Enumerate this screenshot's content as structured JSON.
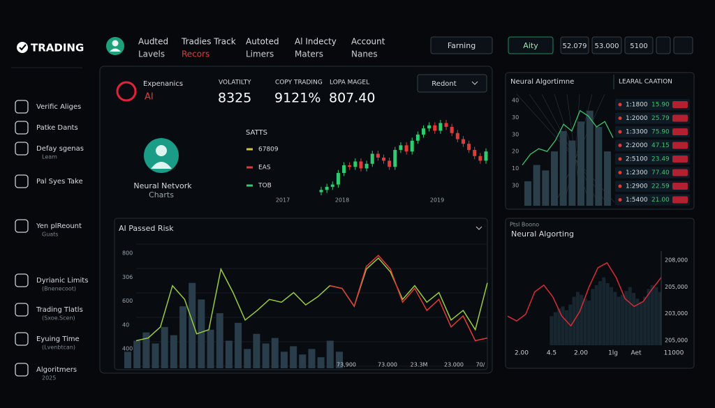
{
  "brand": "TRADING",
  "sidebar": [
    {
      "label": "Verific Aliges"
    },
    {
      "label": "Patke Dants"
    },
    {
      "label": "Defay sgenas",
      "sub": "Leam"
    },
    {
      "label": "Pal Syes Take"
    },
    {
      "label": "Yen plReount",
      "sub": "Guats"
    },
    {
      "label": "Dyrianic Limits",
      "sub": "(Bnenecoot)"
    },
    {
      "label": "Trading Tlatls",
      "sub": "(Sxoe.Scen)"
    },
    {
      "label": "Eyuing Time",
      "sub": "(Lvenbtcan)"
    },
    {
      "label": "Algoritmers",
      "sub": "2025"
    }
  ],
  "nav": [
    {
      "line1": "Audted",
      "line2": "Lavels"
    },
    {
      "line1": "Tradies Track",
      "line2": "Recors"
    },
    {
      "line1": "Autoted",
      "line2": "Limers"
    },
    {
      "line1": "Al Indecty",
      "line2": "Maters"
    },
    {
      "line1": "Account",
      "line2": "Nanes"
    }
  ],
  "toolbar": {
    "search": "Farning",
    "pair": "Aity",
    "quotes": [
      "52.079",
      "53.000",
      "5100"
    ]
  },
  "overview": {
    "badge": {
      "title": "Expenanics",
      "label": "AI"
    },
    "stats": [
      {
        "label": "VOLATILTY",
        "value": "8325"
      },
      {
        "label": "COPY TRADING",
        "value": "9121%"
      },
      {
        "label": "LOPA MAGEL",
        "value": "807.40"
      }
    ],
    "dropdown": "Redont",
    "profile": {
      "title": "Neural Netvork",
      "subtitle": "Charts"
    },
    "legend": {
      "title": "SATTS",
      "items": [
        "67809",
        "EAS",
        "TOB"
      ]
    }
  },
  "candles": {
    "x_labels": [
      "2017",
      "2018",
      "2019"
    ],
    "open": [
      5,
      8,
      12,
      15,
      30,
      40,
      38,
      45,
      36,
      42,
      55,
      50,
      46,
      38,
      60,
      66,
      58,
      72,
      80,
      88,
      92,
      85,
      95,
      90,
      82,
      74,
      68,
      60,
      52,
      46
    ],
    "close": [
      8,
      12,
      15,
      30,
      40,
      38,
      45,
      36,
      42,
      55,
      50,
      46,
      38,
      60,
      66,
      58,
      72,
      80,
      88,
      92,
      85,
      95,
      90,
      82,
      74,
      68,
      60,
      52,
      46,
      58
    ],
    "high": [
      12,
      16,
      19,
      34,
      44,
      44,
      49,
      49,
      46,
      59,
      59,
      54,
      50,
      64,
      70,
      70,
      76,
      84,
      92,
      96,
      96,
      99,
      99,
      94,
      86,
      78,
      72,
      64,
      56,
      62
    ],
    "low": [
      1,
      4,
      8,
      11,
      26,
      34,
      34,
      32,
      32,
      38,
      46,
      42,
      34,
      34,
      56,
      54,
      54,
      68,
      76,
      84,
      81,
      81,
      86,
      78,
      70,
      64,
      56,
      48,
      42,
      42
    ]
  },
  "risk": {
    "title": "AI Passed Risk",
    "y_labels": [
      "800",
      "306",
      "600",
      "40",
      "400"
    ],
    "x_labels": [
      "73,900",
      "73.000",
      "23.3M",
      "23.000",
      "70/"
    ],
    "bars": [
      12,
      20,
      26,
      18,
      30,
      24,
      45,
      62,
      50,
      28,
      40,
      20,
      33,
      14,
      25,
      18,
      22,
      12,
      16,
      10,
      14,
      8,
      20,
      12
    ],
    "lines": [
      {
        "color": "#9ccc3c",
        "values": [
          20,
          22,
          30,
          60,
          50,
          25,
          28,
          72,
          55,
          35,
          42,
          50,
          48,
          55,
          46,
          52,
          60,
          58,
          45,
          72,
          80,
          70,
          50,
          60,
          48,
          55,
          35,
          42,
          28,
          62
        ]
      },
      {
        "color": "#e53935",
        "values": [
          null,
          null,
          null,
          null,
          null,
          null,
          null,
          null,
          null,
          null,
          null,
          null,
          null,
          null,
          null,
          null,
          60,
          58,
          45,
          74,
          82,
          72,
          48,
          58,
          42,
          50,
          30,
          38,
          20,
          22
        ]
      }
    ]
  },
  "algo": {
    "title": "Neural Algortimne",
    "table_title": "LEARAL CAATION",
    "y_labels": [
      "40",
      "30",
      "30",
      "20",
      "10",
      "30"
    ],
    "bars": [
      18,
      30,
      26,
      40,
      55,
      48,
      62,
      70,
      58,
      40
    ],
    "line": [
      30,
      38,
      42,
      40,
      48,
      60,
      55,
      70,
      66,
      58,
      62,
      50
    ],
    "rows": [
      [
        "1:1800",
        "15.90"
      ],
      [
        "1:2000",
        "25.79"
      ],
      [
        "1:3300",
        "75.90"
      ],
      [
        "2:2000",
        "47.15"
      ],
      [
        "2:5100",
        "23.49"
      ],
      [
        "1:2300",
        "77.40"
      ],
      [
        "1:2900",
        "22.59"
      ],
      [
        "1:5400",
        "21.00"
      ]
    ]
  },
  "forecast": {
    "caption": "Ptsl Boono",
    "title": "Neural Algorting",
    "y_labels": [
      "208,000",
      "205,000",
      "203,000",
      "205,000"
    ],
    "x_labels": [
      "2.00",
      "4.5",
      "2.00",
      "1lg",
      "Aet",
      "11000"
    ],
    "bars": [
      30,
      34,
      38,
      40,
      36,
      42,
      50,
      55,
      52,
      48,
      46,
      58,
      62,
      66,
      70,
      64,
      60,
      55,
      50,
      52,
      56,
      60,
      54,
      48,
      45,
      50,
      58,
      62,
      60,
      55
    ],
    "line": [
      30,
      25,
      32,
      55,
      62,
      50,
      30,
      20,
      35,
      60,
      80,
      85,
      70,
      48,
      40,
      45,
      58,
      70
    ]
  }
}
